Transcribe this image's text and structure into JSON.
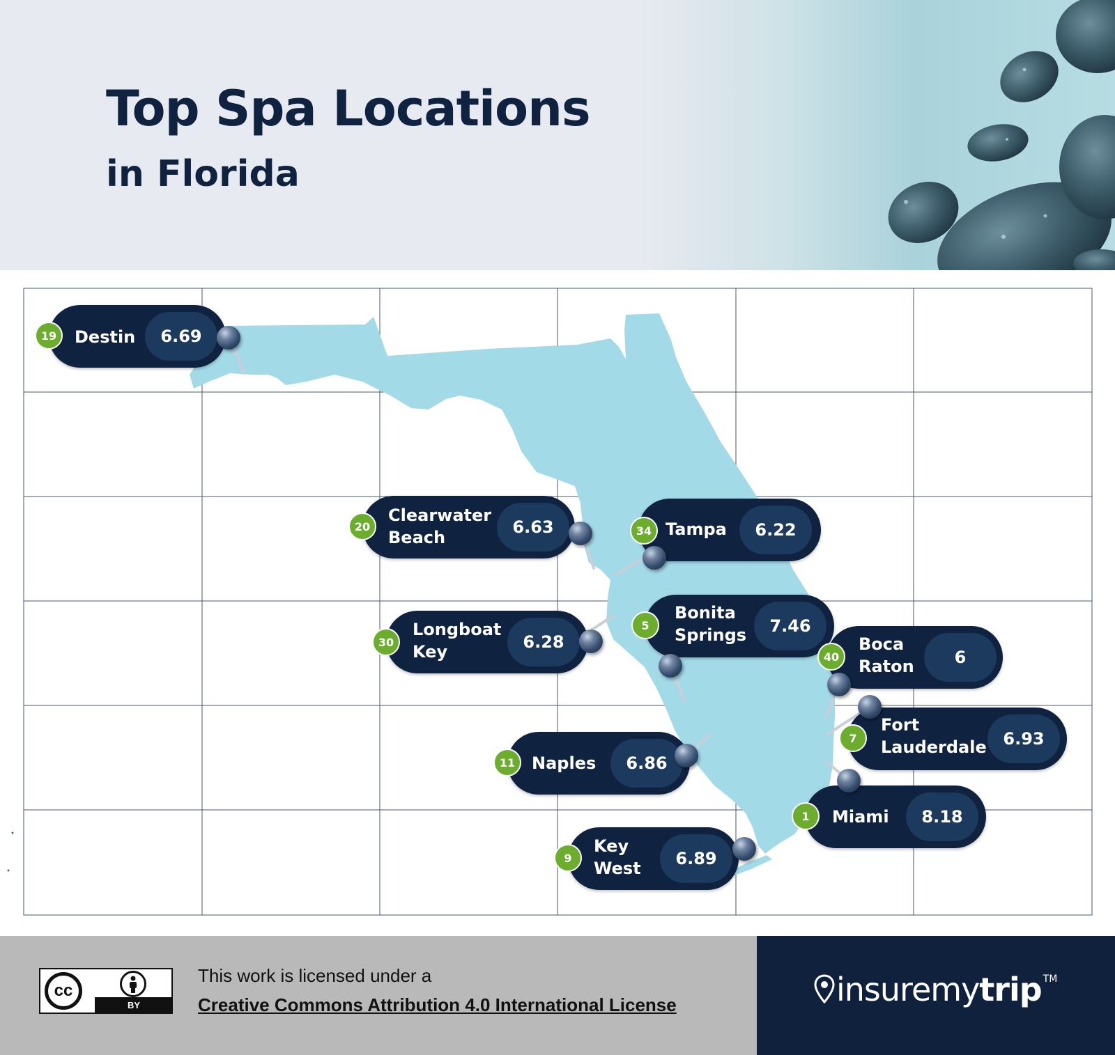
{
  "header": {
    "title": "Top Spa Locations",
    "subtitle": "in Florida"
  },
  "map": {
    "colors": {
      "land": "#a3dae8",
      "pill": "#0f2341",
      "score_pill": "#1c3a5e",
      "rank_badge": "#6cad2e",
      "grid": "#4a5670"
    },
    "markers": [
      {
        "rank": "19",
        "city": "Destin",
        "score": "6.69"
      },
      {
        "rank": "20",
        "city": "Clearwater\nBeach",
        "score": "6.63"
      },
      {
        "rank": "34",
        "city": "Tampa",
        "score": "6.22"
      },
      {
        "rank": "30",
        "city": "Longboat\nKey",
        "score": "6.28"
      },
      {
        "rank": "5",
        "city": "Bonita\nSprings",
        "score": "7.46"
      },
      {
        "rank": "40",
        "city": "Boca\nRaton",
        "score": "6"
      },
      {
        "rank": "7",
        "city": "Fort\nLauderdale",
        "score": "6.93"
      },
      {
        "rank": "11",
        "city": "Naples",
        "score": "6.86"
      },
      {
        "rank": "1",
        "city": "Miami",
        "score": "8.18"
      },
      {
        "rank": "9",
        "city": "Key\nWest",
        "score": "6.89"
      }
    ]
  },
  "footer": {
    "license_intro": "This work is licensed under a",
    "license_link": "Creative Commons Attribution 4.0 International License",
    "cc_mark": "cc",
    "cc_by": "BY",
    "brand_light": "insuremy",
    "brand_bold": "trip",
    "brand_tm": "TM"
  }
}
